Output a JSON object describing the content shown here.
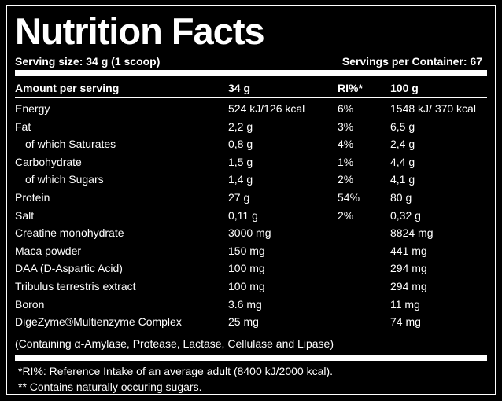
{
  "title": "Nutrition Facts",
  "serving_size": "Serving size: 34 g (1 scoop)",
  "servings_per_container": "Servings per Container: 67",
  "headers": [
    "Amount per serving",
    "34 g",
    "RI%*",
    "100 g"
  ],
  "rows": [
    {
      "name": "Energy",
      "indent": false,
      "per_serving": "524 kJ/126 kcal",
      "ri": "6%",
      "per_100g": "1548 kJ/ 370 kcal"
    },
    {
      "name": "Fat",
      "indent": false,
      "per_serving": "2,2 g",
      "ri": "3%",
      "per_100g": "6,5 g"
    },
    {
      "name": "of which Saturates",
      "indent": true,
      "per_serving": "0,8 g",
      "ri": "4%",
      "per_100g": "2,4 g"
    },
    {
      "name": "Carbohydrate",
      "indent": false,
      "per_serving": "1,5 g",
      "ri": "1%",
      "per_100g": "4,4 g"
    },
    {
      "name": "of which Sugars",
      "indent": true,
      "per_serving": "1,4 g",
      "ri": "2%",
      "per_100g": "4,1 g"
    },
    {
      "name": "Protein",
      "indent": false,
      "per_serving": "27 g",
      "ri": "54%",
      "per_100g": "80 g"
    },
    {
      "name": "Salt",
      "indent": false,
      "per_serving": "0,11 g",
      "ri": "2%",
      "per_100g": "0,32 g"
    },
    {
      "name": "Creatine monohydrate",
      "indent": false,
      "per_serving": "3000 mg",
      "ri": "",
      "per_100g": "8824 mg"
    },
    {
      "name": "Maca powder",
      "indent": false,
      "per_serving": "150 mg",
      "ri": "",
      "per_100g": "441 mg"
    },
    {
      "name": "DAA (D-Aspartic Acid)",
      "indent": false,
      "per_serving": "100 mg",
      "ri": "",
      "per_100g": "294 mg"
    },
    {
      "name": "Tribulus terrestris extract",
      "indent": false,
      "per_serving": "100 mg",
      "ri": "",
      "per_100g": "294 mg"
    },
    {
      "name": "Boron",
      "indent": false,
      "per_serving": "3.6 mg",
      "ri": "",
      "per_100g": "11 mg"
    },
    {
      "name": "DigeZyme®Multienzyme Complex",
      "indent": false,
      "per_serving": "25 mg",
      "ri": "",
      "per_100g": "74 mg"
    }
  ],
  "enzyme_note": "(Containing α-Amylase, Protease, Lactase, Cellulase and Lipase)",
  "footnotes": [
    "*RI%: Reference Intake of an average adult (8400 kJ/2000 kcal).",
    "** Contains naturally occuring sugars."
  ]
}
